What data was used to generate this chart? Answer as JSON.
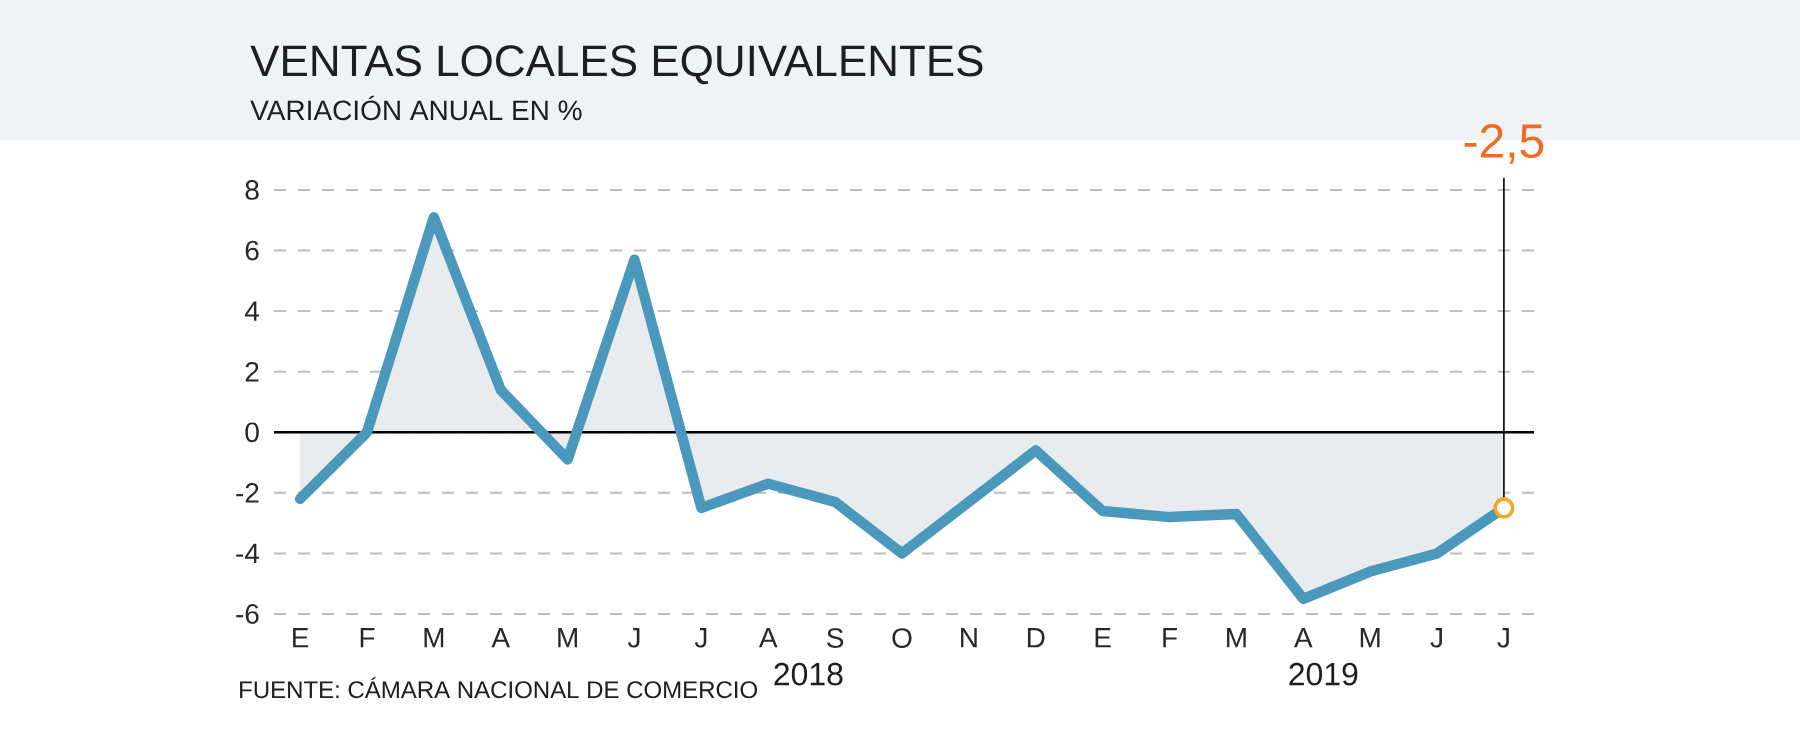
{
  "chart_data": {
    "type": "area",
    "title": "VENTAS LOCALES EQUIVALENTES",
    "subtitle": "VARIACIÓN ANUAL EN %",
    "categories": [
      "E",
      "F",
      "M",
      "A",
      "M",
      "J",
      "J",
      "A",
      "S",
      "O",
      "N",
      "D",
      "E",
      "F",
      "M",
      "A",
      "M",
      "J",
      "J"
    ],
    "values": [
      -2.2,
      0,
      7.1,
      1.4,
      -0.9,
      5.7,
      -2.5,
      -1.7,
      -2.3,
      -4.0,
      -2.3,
      -0.6,
      -2.6,
      -2.8,
      -2.7,
      -5.5,
      -4.6,
      -4.0,
      -2.5
    ],
    "value_labels": [
      null,
      null,
      null,
      null,
      null,
      null,
      null,
      null,
      null,
      null,
      null,
      null,
      null,
      null,
      null,
      null,
      null,
      null,
      "-2,5"
    ],
    "color": "#4a98bb",
    "ylim": [
      -6,
      8
    ],
    "yticks": [
      -6,
      -4,
      -2,
      0,
      2,
      4,
      6,
      8
    ],
    "grid": "y",
    "ref_lines": [
      {
        "axis": "y",
        "value": 0,
        "color": "#000000"
      }
    ],
    "annotations": [
      "FUENTE: CÁMARA NACIONAL DE COMERCIO",
      "2018",
      "2019"
    ]
  }
}
